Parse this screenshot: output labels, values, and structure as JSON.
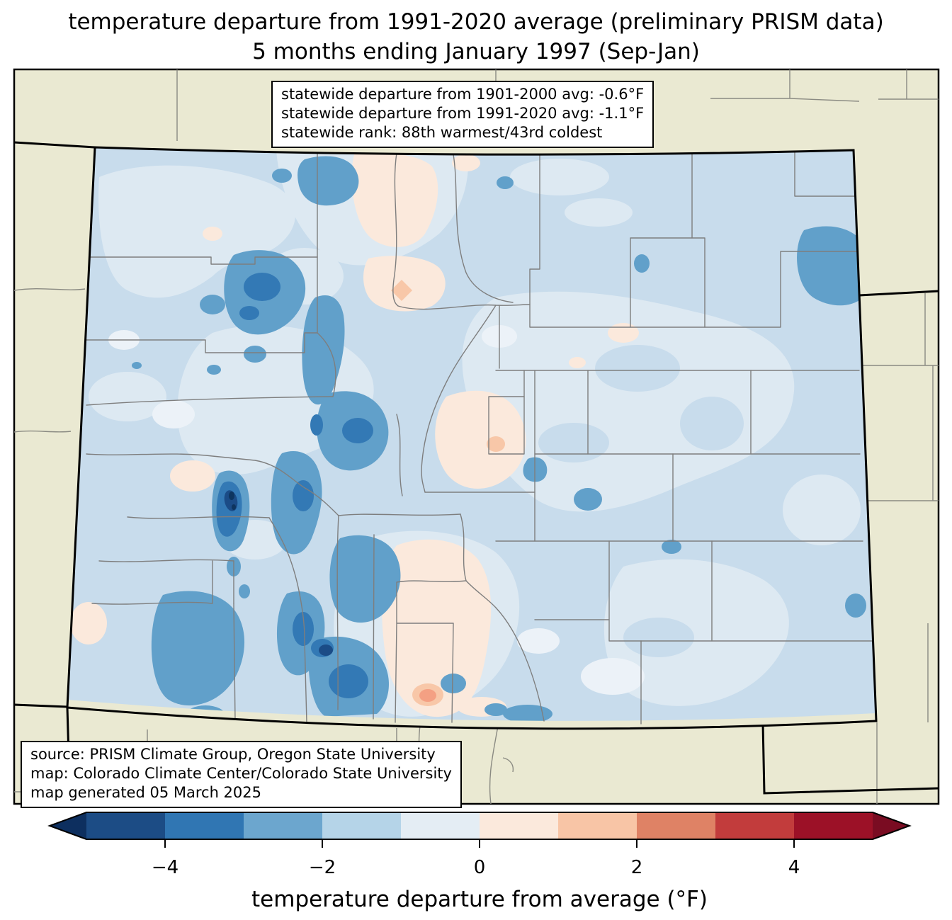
{
  "title": {
    "line1": "temperature departure from 1991-2020 average (preliminary PRISM data)",
    "line2": "5 months ending January 1997 (Sep-Jan)"
  },
  "stats_box": {
    "lines": [
      "statewide departure from 1901-2000 avg: -0.6°F",
      "statewide departure from 1991-2020 avg: -1.1°F",
      "statewide rank: 88th warmest/43rd coldest"
    ]
  },
  "source_box": {
    "lines": [
      "source: PRISM Climate Group, Oregon State University",
      "map: Colorado Climate Center/Colorado State University",
      "map generated 05 March 2025"
    ]
  },
  "colorbar": {
    "label": "temperature departure from average (°F)",
    "ticks": [
      "−4",
      "−2",
      "0",
      "2",
      "4"
    ],
    "tick_values": [
      -4,
      -2,
      0,
      2,
      4
    ],
    "range": [
      -5,
      5
    ],
    "segment_colors": [
      "#1c4c85",
      "#3076b3",
      "#6ca6ce",
      "#b5d4e8",
      "#e4edf4",
      "#fbe9dc",
      "#f8c5a6",
      "#df8265",
      "#c23c3c",
      "#9c1127"
    ],
    "under_color": "#0d2f5f",
    "over_color": "#7a0c22"
  },
  "map": {
    "region": "Colorado",
    "background_color": "#eae9d2",
    "palette": {
      "base": "#c8dcec",
      "light1": "#dde9f2",
      "light0": "#ecf2f8",
      "med": "#61a0ca",
      "blue5": "#3379b5",
      "navy6": "#1b4c87",
      "navy7": "#0e355f",
      "warm1": "#fbe9dc",
      "warm2": "#f8c7a8",
      "warm3": "#f4a083"
    }
  }
}
